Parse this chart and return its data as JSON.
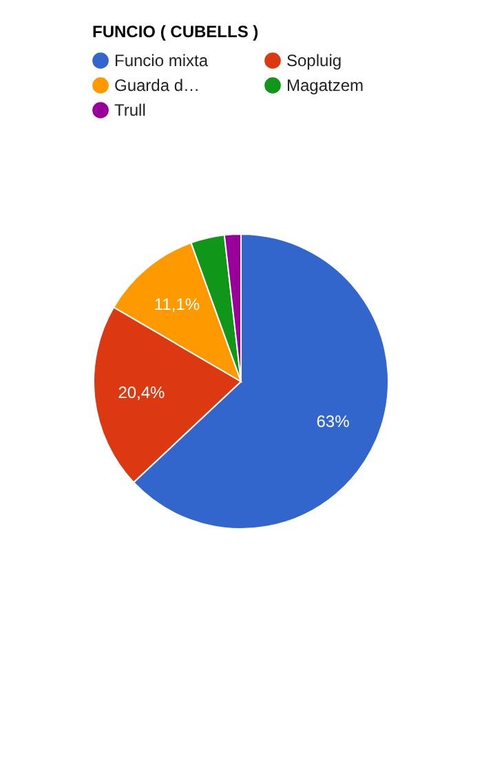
{
  "chart_data": {
    "type": "pie",
    "legend_title": "FUNCIO ( CUBELLS )",
    "categories": [
      "Funcio mixta",
      "Sopluig",
      "Guarda d…",
      "Magatzem",
      "Trull"
    ],
    "values": [
      63,
      20.4,
      11.1,
      3.7,
      1.8
    ],
    "colors": [
      "#3366cc",
      "#dc3912",
      "#ff9900",
      "#109618",
      "#990099"
    ],
    "value_labels": [
      "63%",
      "20,4%",
      "11,1%",
      null,
      null
    ],
    "legend": "top left"
  }
}
